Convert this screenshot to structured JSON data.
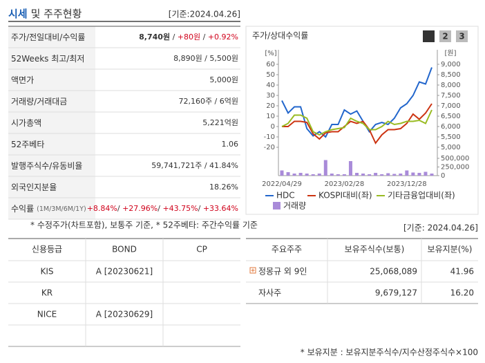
{
  "header": {
    "title_lead": "시세",
    "title_rest": "및 주주현황",
    "date": "[기준:2024.04.26]"
  },
  "price_table": {
    "rows": [
      {
        "label": "주가/전일대비/수익률",
        "value": [
          {
            "text": "8,740원",
            "bold": true
          },
          {
            "text": " / "
          },
          {
            "text": "+80원",
            "color": "#d0021b"
          },
          {
            "text": " / "
          },
          {
            "text": "+0.92%",
            "color": "#d0021b"
          }
        ]
      },
      {
        "label": "52Weeks 최고/최저",
        "value": [
          {
            "text": "8,890원 / 5,500원"
          }
        ]
      },
      {
        "label": "액면가",
        "value": [
          {
            "text": "5,000원"
          }
        ]
      },
      {
        "label": "거래량/거래대금",
        "value": [
          {
            "text": "72,160주 / 6억원"
          }
        ]
      },
      {
        "label": "시가총액",
        "value": [
          {
            "text": "5,221억원"
          }
        ]
      },
      {
        "label": "52주베타",
        "value": [
          {
            "text": "1.06"
          }
        ]
      },
      {
        "label": "발행주식수/유동비율",
        "value": [
          {
            "text": "59,741,721주 / 41.84%"
          }
        ]
      },
      {
        "label": "외국인지분율",
        "value": [
          {
            "text": "18.26%"
          }
        ]
      },
      {
        "label": "수익률",
        "sublabel": "(1M/3M/6M/1Y)",
        "value": [
          {
            "text": "+8.84%",
            "color": "#d0021b"
          },
          {
            "text": "/ "
          },
          {
            "text": "+27.96%",
            "color": "#d0021b"
          },
          {
            "text": "/ "
          },
          {
            "text": "+43.75%",
            "color": "#d0021b"
          },
          {
            "text": "/ "
          },
          {
            "text": "+33.64%",
            "color": "#d0021b"
          }
        ]
      }
    ]
  },
  "note": "* 수정주가(차트포함), 보통주 기준, * 52주베타: 주간수익률 기준",
  "chart_panel": {
    "title": "주가/상대수익률",
    "tabs": [
      "1",
      "2",
      "3"
    ]
  },
  "chart_data": {
    "type": "line",
    "ylabel": "[%]",
    "y2label": "[원]",
    "categories": [
      "2022/04/29",
      null,
      null,
      null,
      null,
      null,
      null,
      null,
      null,
      null,
      "2023/02/28",
      null,
      null,
      null,
      null,
      null,
      null,
      null,
      null,
      null,
      "2023/12/28",
      null,
      null,
      null,
      null
    ],
    "series": [
      {
        "name": "HDC",
        "color": "#2266cc",
        "values": [
          25,
          13,
          19,
          19,
          -2,
          -9,
          -5,
          -10,
          2,
          2,
          16,
          12,
          15,
          5,
          -5,
          2,
          4,
          2,
          8,
          18,
          22,
          30,
          43,
          41,
          57
        ]
      },
      {
        "name": "KOSPI대비(좌)",
        "color": "#cc3311",
        "values": [
          0,
          0,
          5,
          5,
          4,
          -7,
          -12,
          -6,
          -5,
          -5,
          0,
          5,
          3,
          5,
          -3,
          -16,
          -8,
          -3,
          -3,
          -2,
          3,
          12,
          7,
          13,
          22
        ]
      },
      {
        "name": "기타금융업대비(좌)",
        "color": "#99bb22",
        "values": [
          0,
          3,
          11,
          11,
          8,
          -5,
          -8,
          -5,
          -3,
          -2,
          -1,
          8,
          5,
          3,
          -3,
          -3,
          0,
          5,
          2,
          3,
          5,
          5,
          6,
          3,
          16
        ]
      }
    ],
    "volume": {
      "name": "거래량",
      "color": "#a98bd9",
      "values": [
        150000,
        100000,
        60000,
        80000,
        60000,
        40000,
        60000,
        450000,
        60000,
        40000,
        40000,
        420000,
        80000,
        60000,
        40000,
        80000,
        40000,
        70000,
        50000,
        60000,
        150000,
        90000,
        80000,
        110000,
        60000
      ]
    },
    "ylim": [
      -20,
      60
    ],
    "yticks": [
      -20,
      -10,
      0,
      10,
      20,
      30,
      40,
      50,
      60
    ],
    "y2lim": [
      5000,
      9000
    ],
    "y2ticks": [
      {
        "value": 5000,
        "label": "5,000"
      },
      {
        "value": 5500,
        "label": "5,500"
      },
      {
        "value": 6000,
        "label": "6,000"
      },
      {
        "value": 6500,
        "label": "6,500"
      },
      {
        "value": 7000,
        "label": "7,000"
      },
      {
        "value": 7500,
        "label": "7,500"
      },
      {
        "value": 8000,
        "label": "8,000"
      },
      {
        "value": 8500,
        "label": "8,500"
      },
      {
        "value": 9000,
        "label": "9,000"
      }
    ],
    "vlim": [
      0,
      500000
    ],
    "vticks": [
      0,
      {
        "value": 250000,
        "label": "250,000"
      },
      {
        "value": 500000,
        "label": "500,000"
      }
    ]
  },
  "shareholder_date": "[기준: 2024.04.26]",
  "credit_table": {
    "columns": [
      "신용등급",
      "BOND",
      "CP"
    ],
    "rows": [
      [
        "KIS",
        "A  [20230621]",
        null
      ],
      [
        "KR",
        null,
        null
      ],
      [
        "NICE",
        "A  [20230629]",
        null
      ]
    ]
  },
  "holder_table": {
    "columns": [
      "주요주주",
      "보유주식수(보통)",
      "보유지분(%)"
    ],
    "rows": [
      [
        "정몽규 외 9인",
        "25,068,089",
        "41.96"
      ],
      [
        "자사주",
        "9,679,127",
        "16.20"
      ]
    ]
  },
  "footnote": "* 보유지분 : 보유지분주식수/지수산정주식수×100"
}
